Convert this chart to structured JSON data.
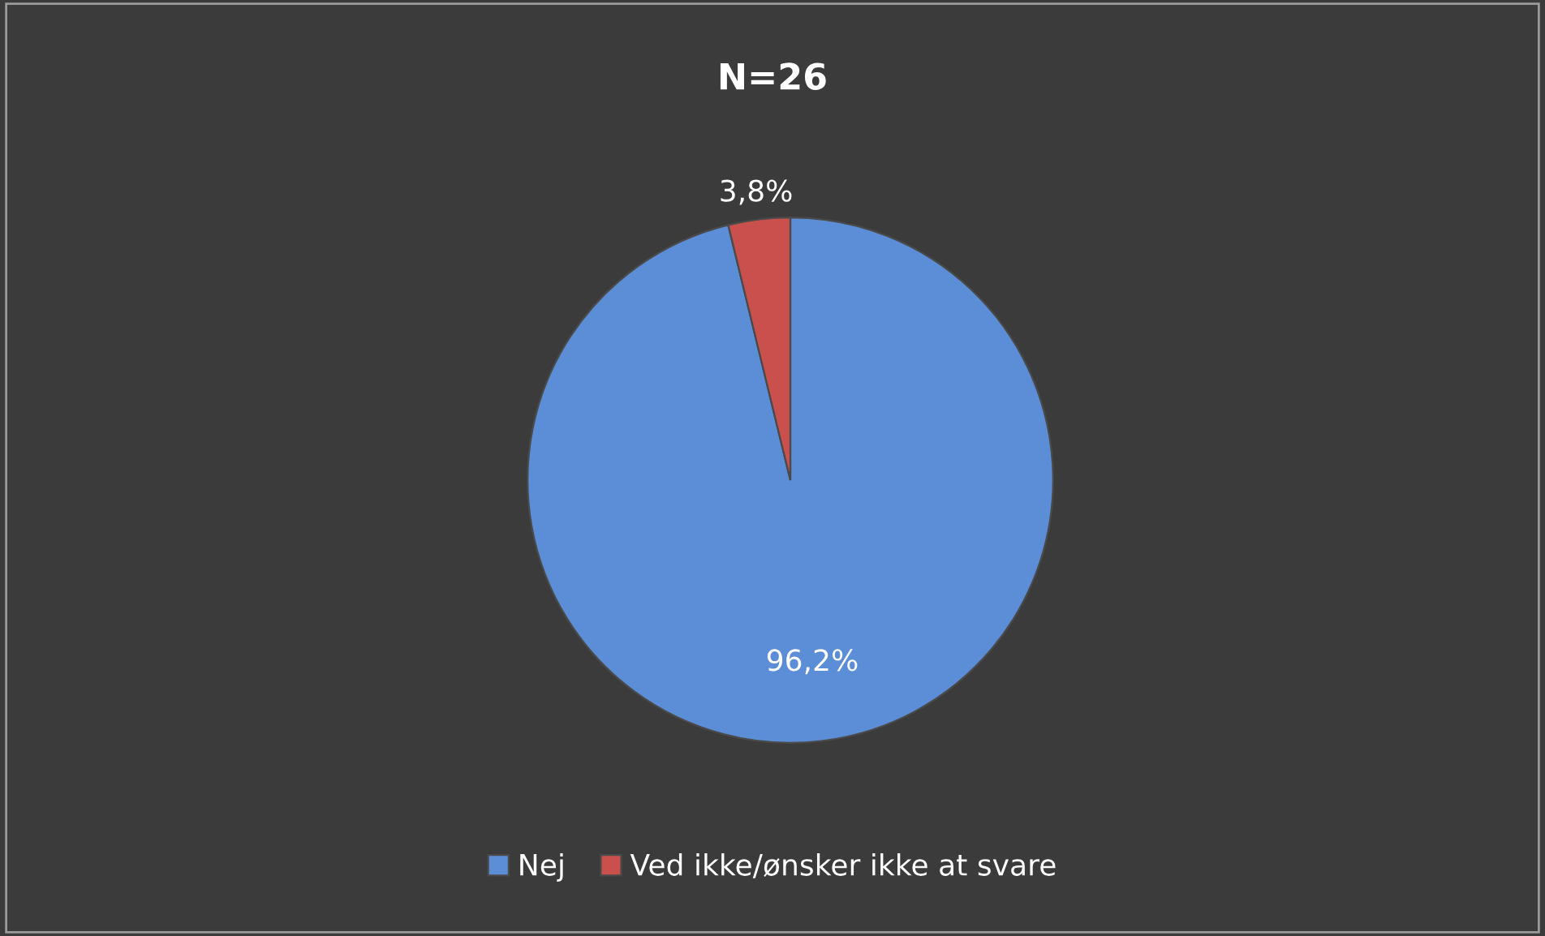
{
  "chart_data": {
    "type": "pie",
    "title": "N=26",
    "categories": [
      "Nej",
      "Ved ikke/ønsker ikke at svare"
    ],
    "values": [
      96.2,
      3.8
    ],
    "colors": [
      "#5b8ed6",
      "#c9504c"
    ],
    "value_labels": [
      "96,2%",
      "3,8%"
    ],
    "legend": "bottom"
  }
}
